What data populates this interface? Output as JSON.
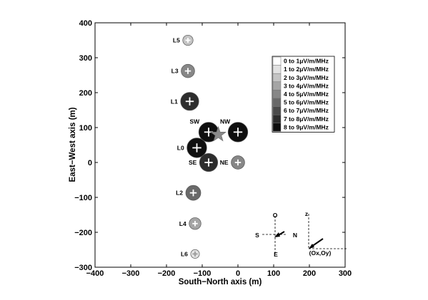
{
  "chart_data": {
    "type": "scatter",
    "xlabel": "South−North axis (m)",
    "ylabel": "East−West axis (m)",
    "xlim": [
      -400,
      300
    ],
    "ylim": [
      -300,
      400
    ],
    "xticks": [
      -400,
      -300,
      -200,
      -100,
      0,
      100,
      200,
      300
    ],
    "yticks": [
      -300,
      -200,
      -100,
      0,
      100,
      200,
      300,
      400
    ],
    "xtick_labels": [
      "−400",
      "−300",
      "−200",
      "−100",
      "0",
      "100",
      "200",
      "300"
    ],
    "ytick_labels": [
      "−300",
      "−200",
      "−100",
      "0",
      "100",
      "200",
      "300",
      "400"
    ],
    "grid": false,
    "legend_position": "top-right",
    "legend": [
      {
        "label": "0 to 1μV/m/MHz",
        "color": "#ffffff"
      },
      {
        "label": "1 to 2μV/m/MHz",
        "color": "#e2e2e2"
      },
      {
        "label": "2 to 3μV/m/MHz",
        "color": "#c4c4c4"
      },
      {
        "label": "3 to 4μV/m/MHz",
        "color": "#a5a5a5"
      },
      {
        "label": "4 to 5μV/m/MHz",
        "color": "#878787"
      },
      {
        "label": "5 to 6μV/m/MHz",
        "color": "#696969"
      },
      {
        "label": "6 to 7μV/m/MHz",
        "color": "#4b4b4b"
      },
      {
        "label": "7 to 8μV/m/MHz",
        "color": "#2d2d2d"
      },
      {
        "label": "8 to 9μV/m/MHz",
        "color": "#0f0f0f"
      }
    ],
    "points": [
      {
        "name": "L5",
        "x": -140,
        "y": 350,
        "level": 2
      },
      {
        "name": "L3",
        "x": -140,
        "y": 262,
        "level": 4
      },
      {
        "name": "L1",
        "x": -135,
        "y": 175,
        "level": 7
      },
      {
        "name": "SW",
        "x": -82,
        "y": 87,
        "level": 8
      },
      {
        "name": "NW",
        "x": 0,
        "y": 87,
        "level": 8
      },
      {
        "name": "L0",
        "x": -115,
        "y": 42,
        "level": 8
      },
      {
        "name": "SE",
        "x": -82,
        "y": 0,
        "level": 7
      },
      {
        "name": "NE",
        "x": 0,
        "y": 0,
        "level": 4
      },
      {
        "name": "L2",
        "x": -125,
        "y": -87,
        "level": 5
      },
      {
        "name": "L4",
        "x": -120,
        "y": -175,
        "level": 3
      },
      {
        "name": "L6",
        "x": -120,
        "y": -262,
        "level": 1
      }
    ],
    "star": {
      "x": -55,
      "y": 80,
      "color": "#8a8a8a"
    },
    "inset": {
      "compass": {
        "top": "O",
        "bottom": "E",
        "left": "S",
        "right": "N"
      },
      "axes": {
        "up": "z",
        "origin": "(Ox,Oy)"
      }
    }
  }
}
